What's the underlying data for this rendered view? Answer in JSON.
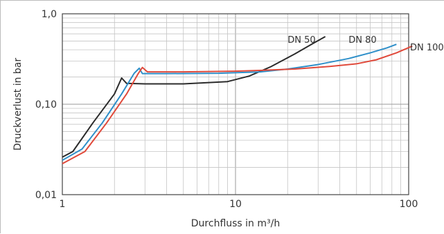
{
  "chart_data": {
    "type": "line",
    "xscale": "log",
    "yscale": "log",
    "xlim": [
      1,
      100
    ],
    "ylim": [
      0.01,
      1.0
    ],
    "xlabel": "Durchfluss in m³/h",
    "ylabel": "Druckverlust in bar",
    "x_ticks": [
      {
        "value": 1,
        "label": "1"
      },
      {
        "value": 10,
        "label": "10"
      },
      {
        "value": 100,
        "label": "100"
      }
    ],
    "y_ticks": [
      {
        "value": 0.01,
        "label": "0,01"
      },
      {
        "value": 0.1,
        "label": "0,10"
      },
      {
        "value": 1.0,
        "label": "1,0"
      }
    ],
    "grid": true,
    "series": [
      {
        "name": "DN 50",
        "color": "#2b2b2b",
        "label_pos": [
          35,
          0.52
        ],
        "points": [
          [
            1.0,
            0.026
          ],
          [
            1.15,
            0.03
          ],
          [
            1.5,
            0.062
          ],
          [
            2.0,
            0.13
          ],
          [
            2.2,
            0.195
          ],
          [
            2.35,
            0.17
          ],
          [
            3.0,
            0.168
          ],
          [
            5.0,
            0.168
          ],
          [
            9.0,
            0.178
          ],
          [
            12.0,
            0.205
          ],
          [
            16.0,
            0.26
          ],
          [
            22.0,
            0.36
          ],
          [
            28.0,
            0.47
          ],
          [
            33.0,
            0.56
          ]
        ]
      },
      {
        "name": "DN 80",
        "color": "#2e8fc9",
        "label_pos": [
          68,
          0.52
        ],
        "points": [
          [
            1.0,
            0.024
          ],
          [
            1.3,
            0.032
          ],
          [
            1.7,
            0.062
          ],
          [
            2.2,
            0.13
          ],
          [
            2.6,
            0.22
          ],
          [
            2.78,
            0.25
          ],
          [
            2.9,
            0.218
          ],
          [
            4.0,
            0.218
          ],
          [
            8.0,
            0.22
          ],
          [
            14.0,
            0.228
          ],
          [
            20.0,
            0.245
          ],
          [
            30.0,
            0.275
          ],
          [
            45.0,
            0.32
          ],
          [
            60.0,
            0.37
          ],
          [
            75.0,
            0.42
          ],
          [
            85.0,
            0.46
          ]
        ]
      },
      {
        "name": "DN 100",
        "color": "#e0493a",
        "label_pos": [
          100,
          0.43
        ],
        "points": [
          [
            1.0,
            0.022
          ],
          [
            1.35,
            0.03
          ],
          [
            1.8,
            0.062
          ],
          [
            2.35,
            0.13
          ],
          [
            2.75,
            0.22
          ],
          [
            2.9,
            0.255
          ],
          [
            3.1,
            0.228
          ],
          [
            5.0,
            0.228
          ],
          [
            10.0,
            0.232
          ],
          [
            15.0,
            0.238
          ],
          [
            22.0,
            0.245
          ],
          [
            35.0,
            0.262
          ],
          [
            50.0,
            0.28
          ],
          [
            65.0,
            0.31
          ],
          [
            85.0,
            0.37
          ],
          [
            105.0,
            0.44
          ]
        ]
      }
    ]
  }
}
